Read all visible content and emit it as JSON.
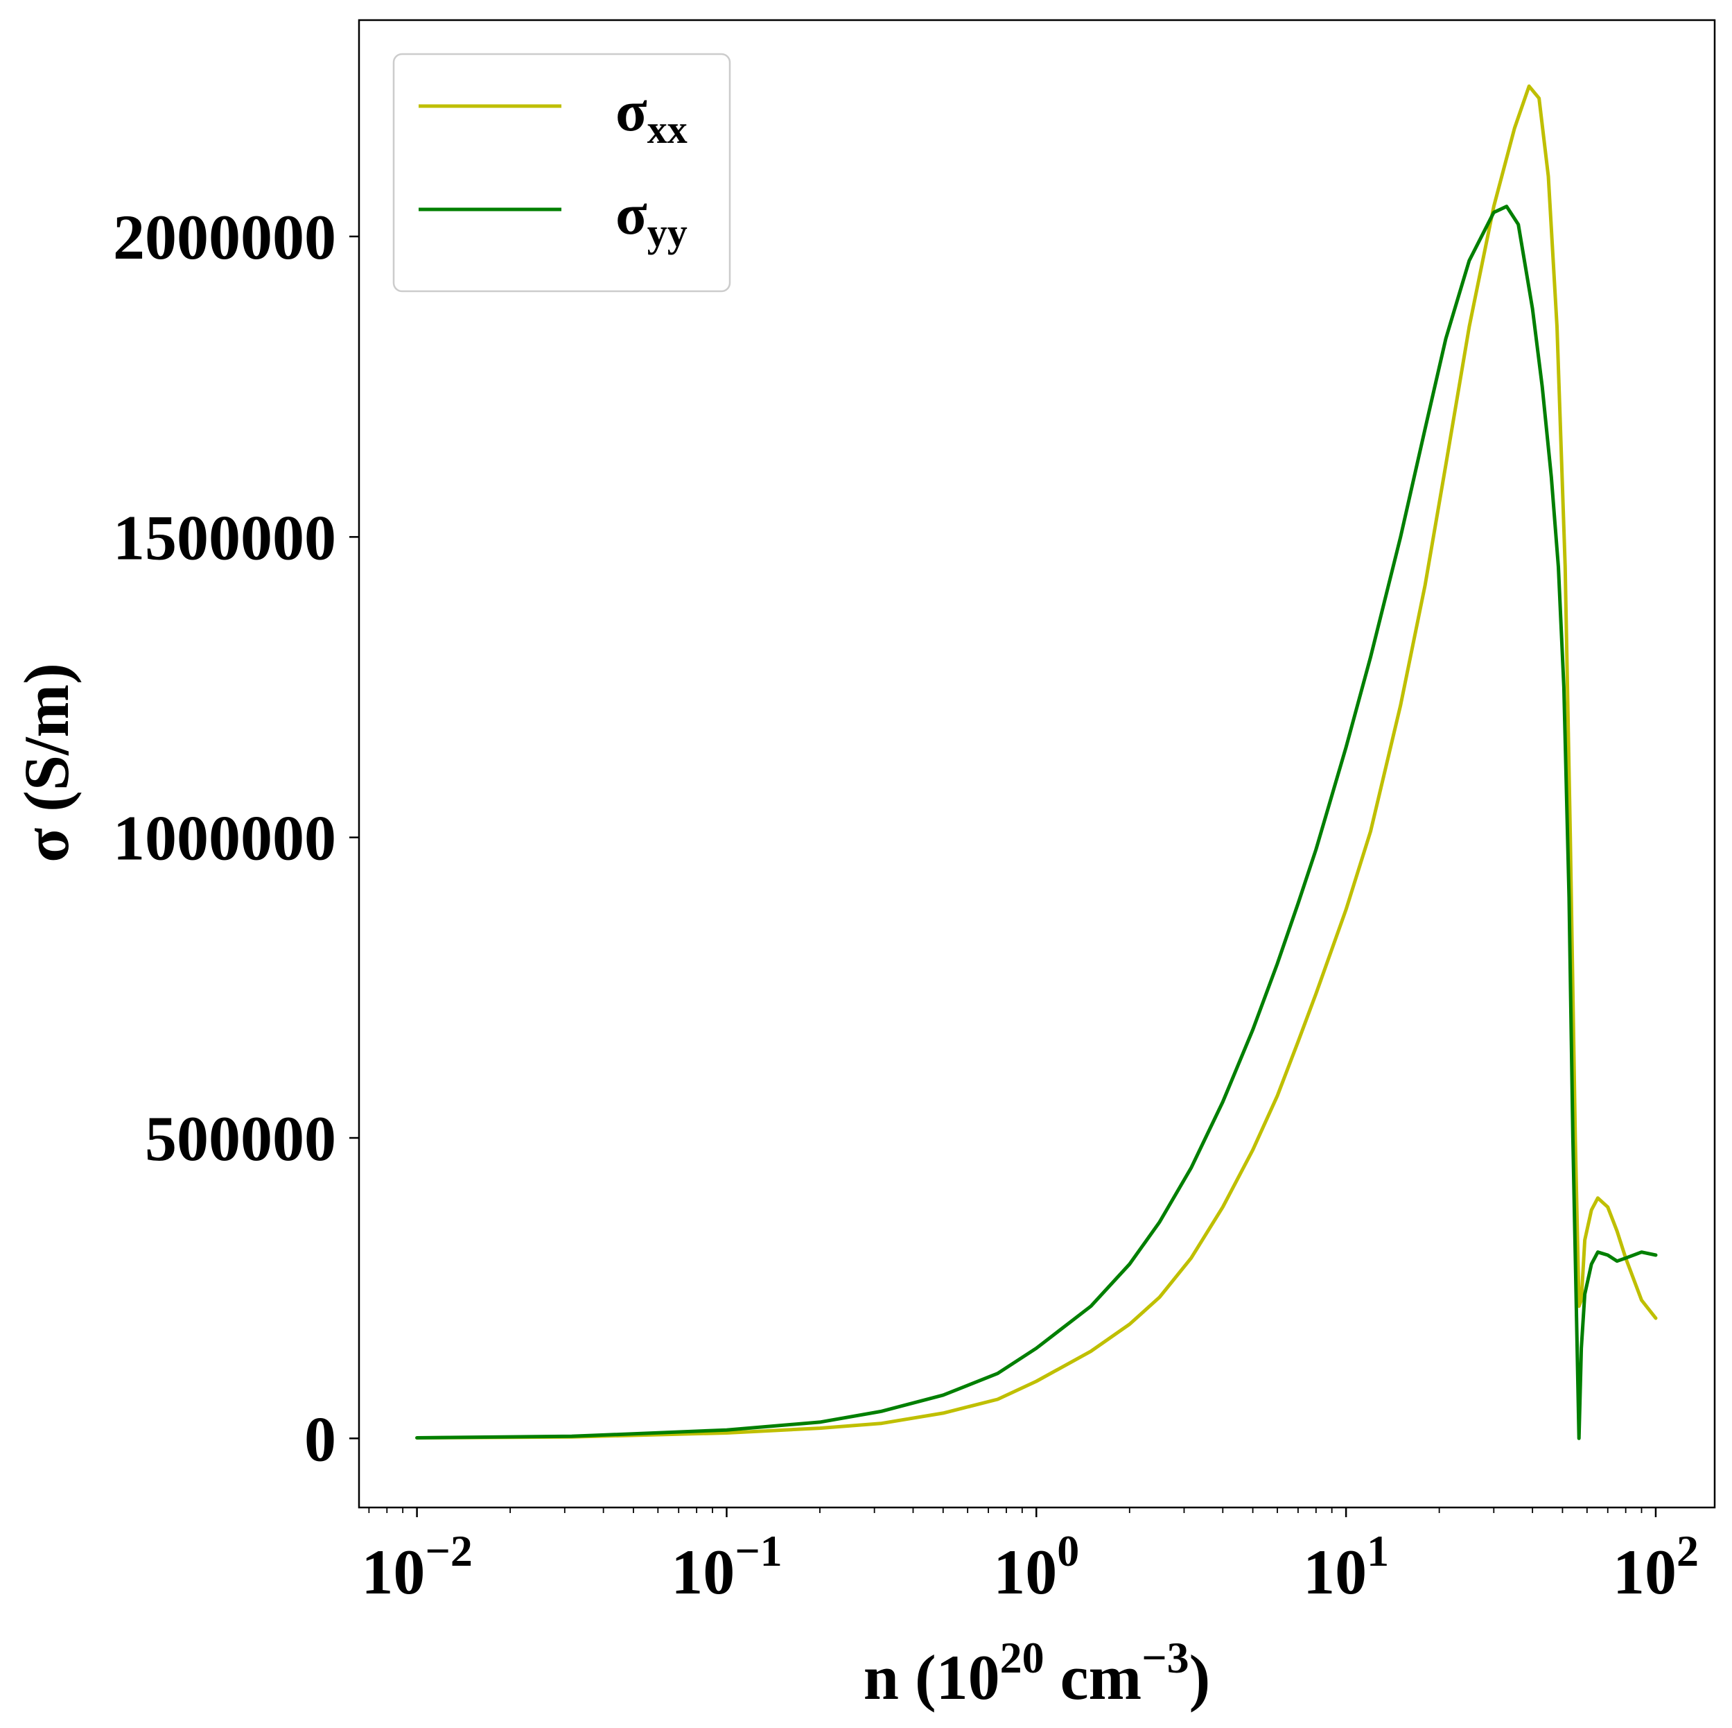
{
  "chart_data": {
    "type": "line",
    "title": "",
    "xscale": "log",
    "xlim": [
      0.0065,
      155
    ],
    "ylim": [
      -115000,
      2360000
    ],
    "x_ticks": [
      {
        "value": 0.01,
        "base": "10",
        "exp": "−2"
      },
      {
        "value": 0.1,
        "base": "10",
        "exp": "−1"
      },
      {
        "value": 1,
        "base": "10",
        "exp": "0"
      },
      {
        "value": 10,
        "base": "10",
        "exp": "1"
      },
      {
        "value": 100,
        "base": "10",
        "exp": "2"
      }
    ],
    "y_ticks": [
      {
        "value": 0,
        "label": "0"
      },
      {
        "value": 500000,
        "label": "500000"
      },
      {
        "value": 1000000,
        "label": "1000000"
      },
      {
        "value": 1500000,
        "label": "1500000"
      },
      {
        "value": 2000000,
        "label": "2000000"
      }
    ],
    "xlabel": {
      "pre": "n (10",
      "sup1": "20",
      "mid": " cm",
      "sup2": "−3",
      "post": ")"
    },
    "ylabel": "σ (S/m)",
    "grid": false,
    "legend_position": "top-left",
    "series": [
      {
        "name": "σ",
        "subscript": "xx",
        "color": "#bfbf00",
        "points": [
          [
            0.01,
            800
          ],
          [
            0.0316,
            2500
          ],
          [
            0.1,
            9000
          ],
          [
            0.2,
            17000
          ],
          [
            0.316,
            25000
          ],
          [
            0.5,
            42000
          ],
          [
            0.75,
            65000
          ],
          [
            1.0,
            95000
          ],
          [
            1.5,
            145000
          ],
          [
            2.0,
            190000
          ],
          [
            2.5,
            235000
          ],
          [
            3.16,
            300000
          ],
          [
            4.0,
            385000
          ],
          [
            5.0,
            480000
          ],
          [
            6.0,
            570000
          ],
          [
            7.0,
            660000
          ],
          [
            8.0,
            740000
          ],
          [
            10.0,
            880000
          ],
          [
            12.0,
            1010000
          ],
          [
            15.0,
            1220000
          ],
          [
            18.0,
            1420000
          ],
          [
            21.0,
            1620000
          ],
          [
            25.0,
            1850000
          ],
          [
            30.0,
            2050000
          ],
          [
            35.0,
            2180000
          ],
          [
            39.0,
            2250000
          ],
          [
            42.0,
            2230000
          ],
          [
            45.0,
            2100000
          ],
          [
            48.0,
            1850000
          ],
          [
            51.0,
            1450000
          ],
          [
            53.0,
            1000000
          ],
          [
            55.0,
            500000
          ],
          [
            56.5,
            220000
          ],
          [
            57.5,
            230000
          ],
          [
            59.0,
            330000
          ],
          [
            62.0,
            380000
          ],
          [
            65.0,
            400000
          ],
          [
            70.0,
            385000
          ],
          [
            75.0,
            345000
          ],
          [
            80.0,
            300000
          ],
          [
            90.0,
            230000
          ],
          [
            100.0,
            200000
          ]
        ]
      },
      {
        "name": "σ",
        "subscript": "yy",
        "color": "#007f00",
        "points": [
          [
            0.01,
            1000
          ],
          [
            0.0316,
            3500
          ],
          [
            0.1,
            14000
          ],
          [
            0.2,
            27000
          ],
          [
            0.316,
            45000
          ],
          [
            0.5,
            72000
          ],
          [
            0.75,
            108000
          ],
          [
            1.0,
            150000
          ],
          [
            1.5,
            220000
          ],
          [
            2.0,
            290000
          ],
          [
            2.5,
            360000
          ],
          [
            3.16,
            450000
          ],
          [
            4.0,
            560000
          ],
          [
            5.0,
            680000
          ],
          [
            6.0,
            790000
          ],
          [
            7.0,
            890000
          ],
          [
            8.0,
            980000
          ],
          [
            10.0,
            1150000
          ],
          [
            12.0,
            1300000
          ],
          [
            15.0,
            1500000
          ],
          [
            18.0,
            1680000
          ],
          [
            21.0,
            1830000
          ],
          [
            25.0,
            1960000
          ],
          [
            30.0,
            2040000
          ],
          [
            33.0,
            2050000
          ],
          [
            36.0,
            2020000
          ],
          [
            40.0,
            1880000
          ],
          [
            43.0,
            1750000
          ],
          [
            46.0,
            1600000
          ],
          [
            48.5,
            1450000
          ],
          [
            50.5,
            1250000
          ],
          [
            52.5,
            900000
          ],
          [
            54.0,
            500000
          ],
          [
            55.5,
            200000
          ],
          [
            56.5,
            0
          ],
          [
            57.5,
            150000
          ],
          [
            59.0,
            240000
          ],
          [
            62.0,
            290000
          ],
          [
            65.0,
            310000
          ],
          [
            70.0,
            305000
          ],
          [
            75.0,
            295000
          ],
          [
            80.0,
            300000
          ],
          [
            90.0,
            310000
          ],
          [
            100.0,
            305000
          ]
        ]
      }
    ]
  }
}
